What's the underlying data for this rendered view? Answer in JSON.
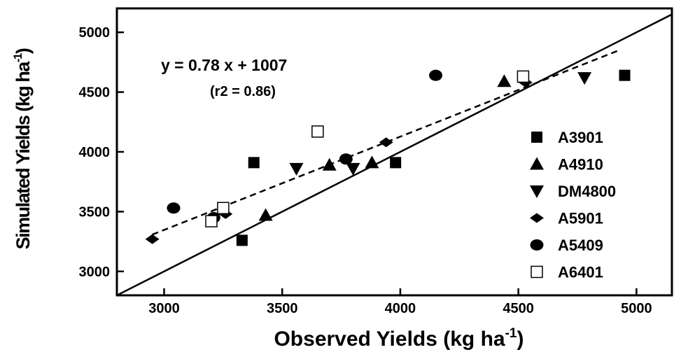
{
  "chart_data": {
    "type": "scatter",
    "xlabel_main": "Observed Yields (kg ha",
    "xlabel_sup": "-1",
    "xlabel_tail": ")",
    "ylabel_main": "Simulated Yields (kg ha",
    "ylabel_sup": "-1",
    "ylabel_tail": ")",
    "xlim": [
      2800,
      5150
    ],
    "ylim": [
      2800,
      5200
    ],
    "xticks": [
      3000,
      3500,
      4000,
      4500,
      5000
    ],
    "yticks": [
      3000,
      3500,
      4000,
      4500,
      5000
    ],
    "equation": "y = 0.78 x + 1007",
    "r2": "(r2 = 0.86)",
    "legend_position": "right",
    "grid": false,
    "series": [
      {
        "name": "A3901",
        "marker": "square",
        "x": [
          3330,
          3380,
          3980,
          4950
        ],
        "y": [
          3260,
          3910,
          3910,
          4640
        ]
      },
      {
        "name": "A4910",
        "marker": "triangle-up",
        "x": [
          3430,
          3700,
          3880,
          4440
        ],
        "y": [
          3470,
          3890,
          3910,
          4590
        ]
      },
      {
        "name": "DM4800",
        "marker": "triangle-down",
        "x": [
          3560,
          3800,
          4780
        ],
        "y": [
          3860,
          3860,
          4620
        ]
      },
      {
        "name": "A5901",
        "marker": "diamond",
        "x": [
          2950,
          3260,
          3940,
          4530
        ],
        "y": [
          3270,
          3480,
          4080,
          4580
        ]
      },
      {
        "name": "A5409",
        "marker": "circle",
        "x": [
          3040,
          3210,
          3770,
          4150
        ],
        "y": [
          3530,
          3450,
          3940,
          4640
        ]
      },
      {
        "name": "A6401",
        "marker": "open-square",
        "x": [
          3200,
          3250,
          3650,
          4520
        ],
        "y": [
          3420,
          3530,
          4170,
          4630
        ]
      }
    ],
    "lines": [
      {
        "kind": "one-to-one",
        "style": "solid",
        "x": [
          2800,
          5150
        ],
        "y": [
          2800,
          5150
        ]
      },
      {
        "kind": "regression",
        "style": "dashed",
        "x": [
          2950,
          4920
        ],
        "y": [
          3308,
          4845
        ]
      }
    ]
  }
}
